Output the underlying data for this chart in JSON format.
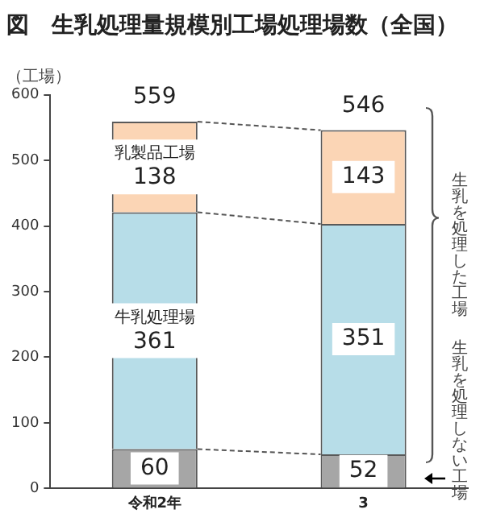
{
  "chart_data": {
    "type": "bar",
    "stacked": true,
    "title": "図　生乳処理量規模別工場処理場数（全国）",
    "ylabel": "（工場）",
    "categories": [
      "令和2年",
      "3"
    ],
    "series": [
      {
        "color": "#a6a6a6",
        "values": [
          60,
          52
        ]
      },
      {
        "name": "牛乳処理場",
        "color": "#b7dde8",
        "values": [
          361,
          351
        ]
      },
      {
        "name": "乳製品工場",
        "color": "#fbd5b5",
        "values": [
          138,
          143
        ]
      }
    ],
    "totals": [
      "559",
      "546"
    ],
    "data_labels": true,
    "ylim": [
      0,
      600
    ],
    "yticks": [
      0,
      100,
      200,
      300,
      400,
      500,
      600
    ],
    "grid": false,
    "legend": false,
    "annotations": [
      "生乳を処理した工場",
      "生乳を処理しない工場"
    ]
  }
}
